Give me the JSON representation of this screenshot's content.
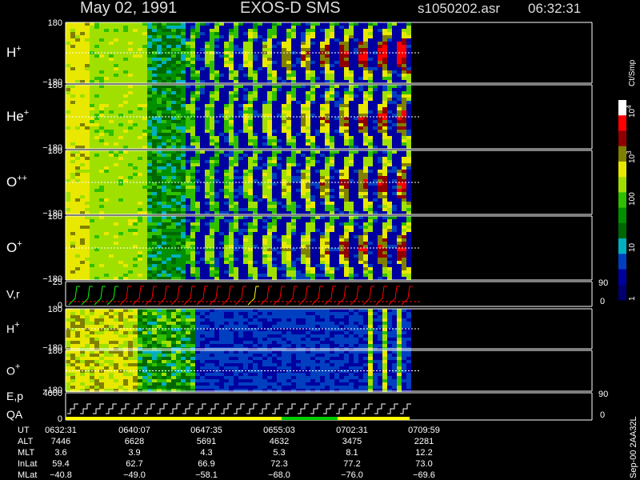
{
  "header": {
    "date": "May 02, 1991",
    "instrument": "EXOS-D SMS",
    "file": "s1050202.asr",
    "time": "06:32:31"
  },
  "panels": [
    {
      "label": "H",
      "sup": "+",
      "ytop": "180",
      "ybottom": "−180"
    },
    {
      "label": "He",
      "sup": "+",
      "ytop": "180",
      "ybottom": "−180"
    },
    {
      "label": "O",
      "sup": "++",
      "ytop": "180",
      "ybottom": "−180"
    },
    {
      "label": "O",
      "sup": "+",
      "ytop": "180",
      "ybottom": "−180"
    },
    {
      "label": "V,r",
      "ytop": "25",
      "ybottom": "0",
      "right_top": "90",
      "right_bottom": "0"
    },
    {
      "label": "H",
      "sup": "+",
      "ytop": "180",
      "ybottom": "−180"
    },
    {
      "label": "O",
      "sup": "+",
      "ytop": "180",
      "ybottom": "−180"
    },
    {
      "label": "E,p",
      "label2": "QA",
      "ytop": "4000",
      "ybottom": "0",
      "right_top": "90",
      "right_bottom": "0"
    }
  ],
  "colorbar": {
    "title": "Ct/Smp",
    "labels": [
      {
        "base": "10",
        "sup": "4"
      },
      {
        "base": "10",
        "sup": "3"
      },
      {
        "base": "100"
      },
      {
        "base": "10"
      },
      {
        "base": "1"
      }
    ]
  },
  "footer": {
    "rows": [
      {
        "label": "UT",
        "values": [
          "0632:31",
          "0640:07",
          "0647:35",
          "0655:03",
          "0702:31",
          "0709:59"
        ]
      },
      {
        "label": "ALT",
        "values": [
          "7446",
          "6628",
          "5691",
          "4632",
          "3475",
          "2281"
        ]
      },
      {
        "label": "MLT",
        "values": [
          "3.6",
          "3.9",
          "4.3",
          "5.3",
          "8.1",
          "12.2"
        ]
      },
      {
        "label": "InLat",
        "values": [
          "59.4",
          "62.7",
          "66.9",
          "72.3",
          "77.2",
          "73.0"
        ]
      },
      {
        "label": "MLat",
        "values": [
          "−40.8",
          "−49.0",
          "−58.1",
          "−68.0",
          "−76.0",
          "−69.6"
        ]
      }
    ]
  },
  "side_note": "Sep-00 2AA32L"
}
